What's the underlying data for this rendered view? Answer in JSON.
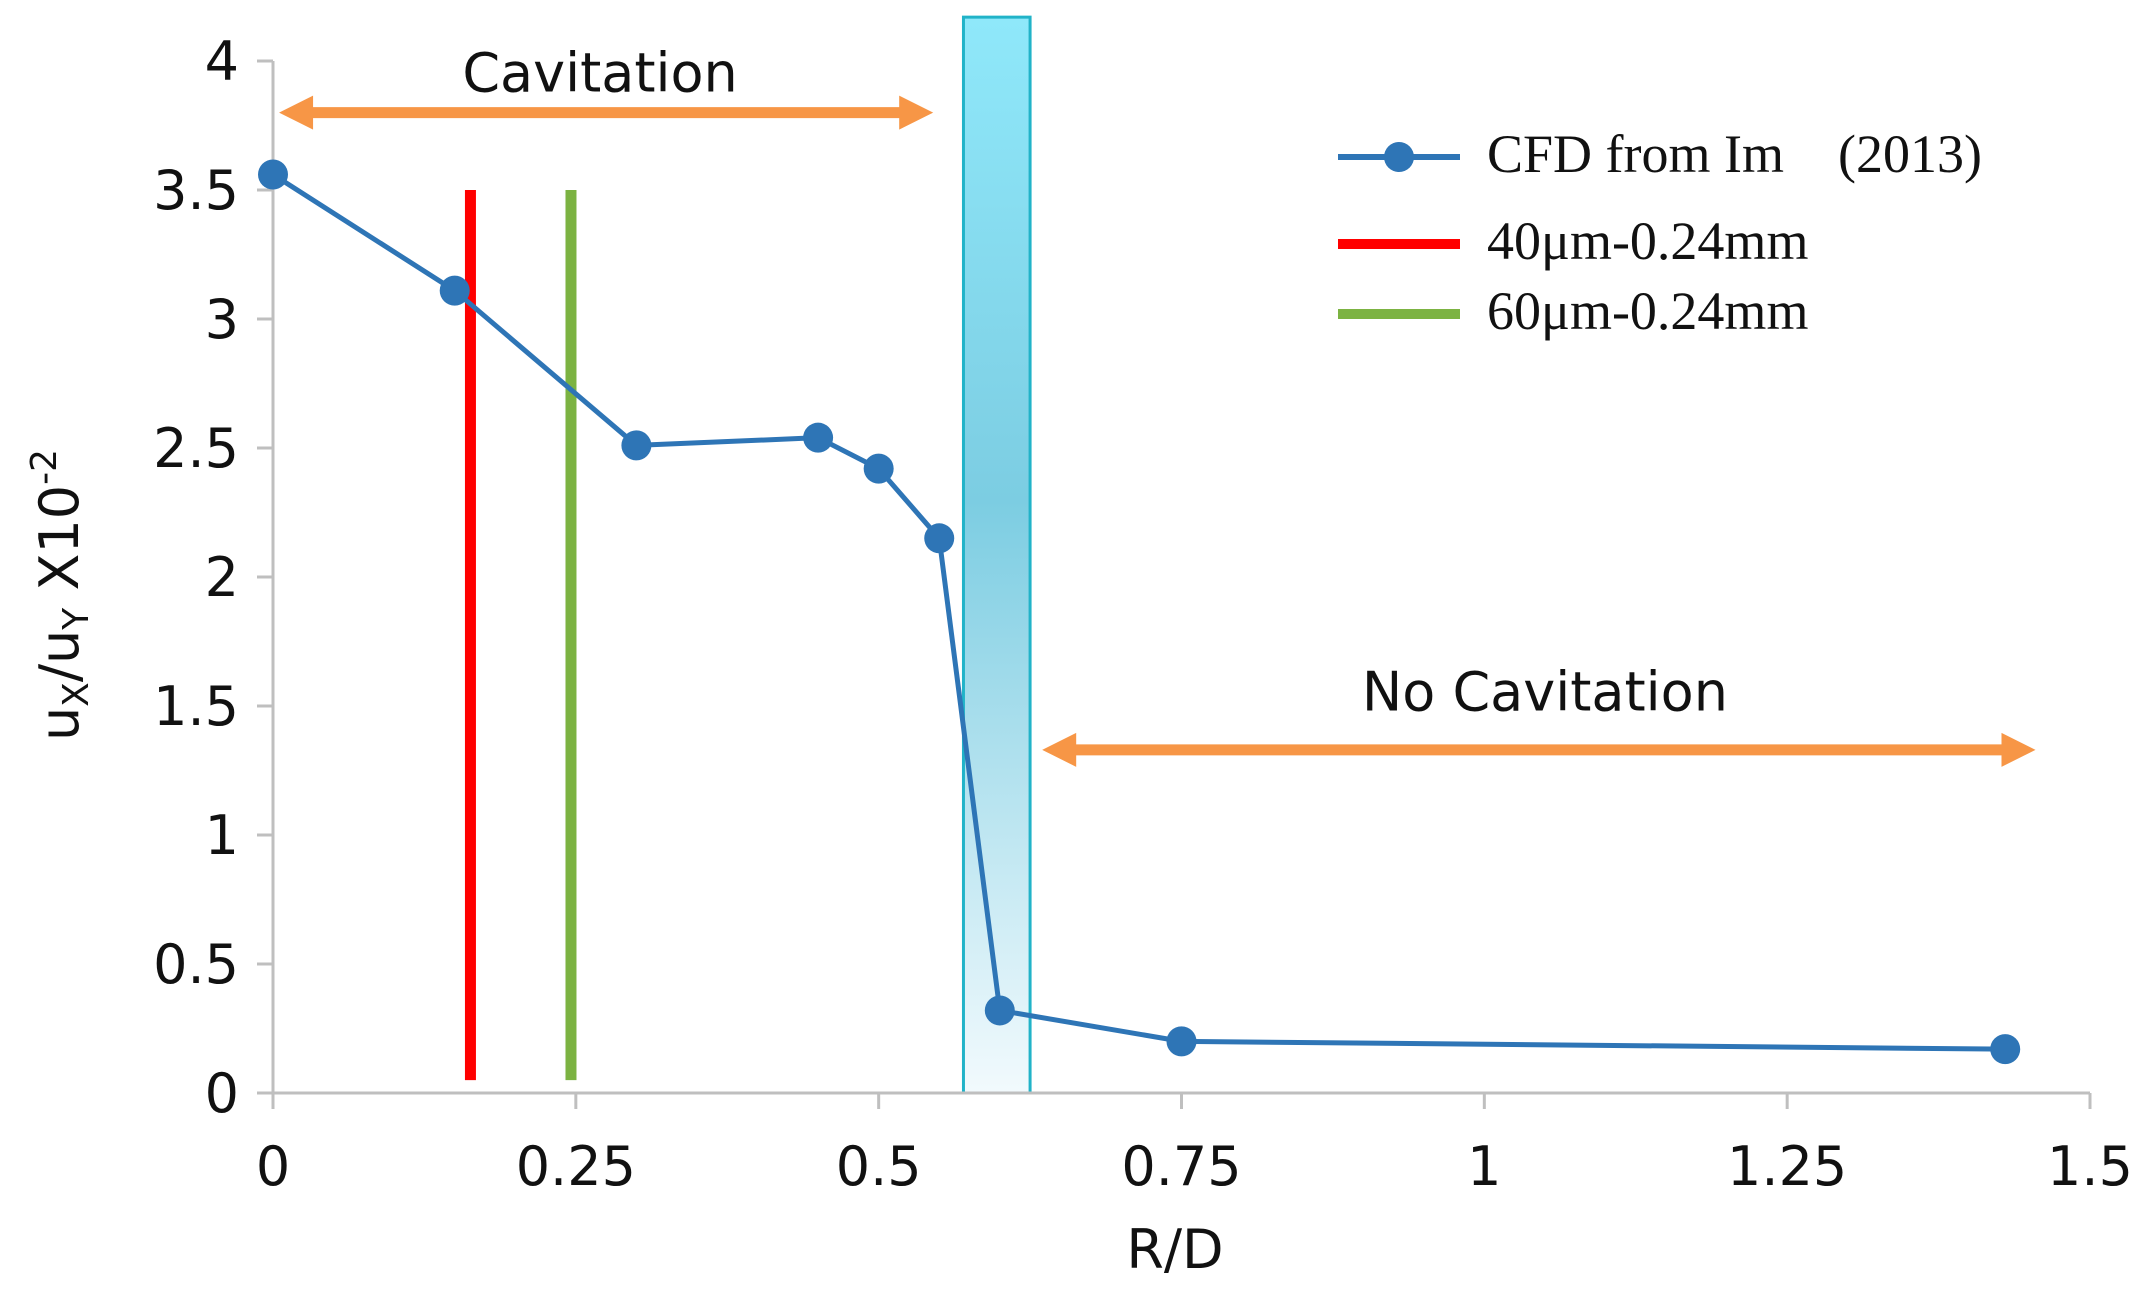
{
  "chart_data": {
    "type": "line",
    "xlabel": "R/D",
    "ylabel": {
      "prefix": "u",
      "sub1": "X",
      "sep": "/u",
      "sub2": "Y",
      "factor": " X10",
      "exp": "-2"
    },
    "xlim": [
      0,
      1.5
    ],
    "ylim": [
      0,
      4
    ],
    "x_ticks": [
      {
        "value": 0,
        "label": "0"
      },
      {
        "value": 0.25,
        "label": "0.25"
      },
      {
        "value": 0.5,
        "label": "0.5"
      },
      {
        "value": 0.75,
        "label": "0.75"
      },
      {
        "value": 1,
        "label": "1"
      },
      {
        "value": 1.25,
        "label": "1.25"
      },
      {
        "value": 1.5,
        "label": "1.5"
      }
    ],
    "y_ticks": [
      {
        "value": 0,
        "label": "0"
      },
      {
        "value": 0.5,
        "label": "0.5"
      },
      {
        "value": 1,
        "label": "1"
      },
      {
        "value": 1.5,
        "label": "1.5"
      },
      {
        "value": 2,
        "label": "2"
      },
      {
        "value": 2.5,
        "label": "2.5"
      },
      {
        "value": 3,
        "label": "3"
      },
      {
        "value": 3.5,
        "label": "3.5"
      },
      {
        "value": 4,
        "label": "4"
      }
    ],
    "series": [
      {
        "name": "CFD from Im　(2013)",
        "color": "#2E75B6",
        "x": [
          0,
          0.15,
          0.3,
          0.45,
          0.5,
          0.55,
          0.6,
          0.75,
          1.43
        ],
        "y": [
          3.56,
          3.11,
          2.51,
          2.54,
          2.42,
          2.15,
          0.32,
          0.2,
          0.17
        ]
      }
    ],
    "vertical_lines": [
      {
        "name": "40μm-0.24mm",
        "color": "#FF0000",
        "x": 0.163,
        "y_from": 0.05,
        "y_to": 3.5
      },
      {
        "name": "60μm-0.24mm",
        "color": "#7CB342",
        "x": 0.246,
        "y_from": 0.05,
        "y_to": 3.5
      }
    ],
    "transition_band": {
      "x_from": 0.57,
      "x_to": 0.625,
      "y_from": 0,
      "y_to": 4.17,
      "color": "#3AC3E8",
      "border": "#21B3C8"
    },
    "annotations": [
      {
        "text": "Cavitation",
        "arrow_from_x": 0.005,
        "arrow_to_x": 0.545,
        "arrow_y": 3.8,
        "text_x": 0.27,
        "text_y": 3.96,
        "color": "#F79646"
      },
      {
        "text": "No Cavitation",
        "arrow_from_x": 0.635,
        "arrow_to_x": 1.455,
        "arrow_y": 1.33,
        "text_x": 1.05,
        "text_y": 1.56,
        "color": "#F79646"
      }
    ],
    "legend_position": "top-right"
  }
}
